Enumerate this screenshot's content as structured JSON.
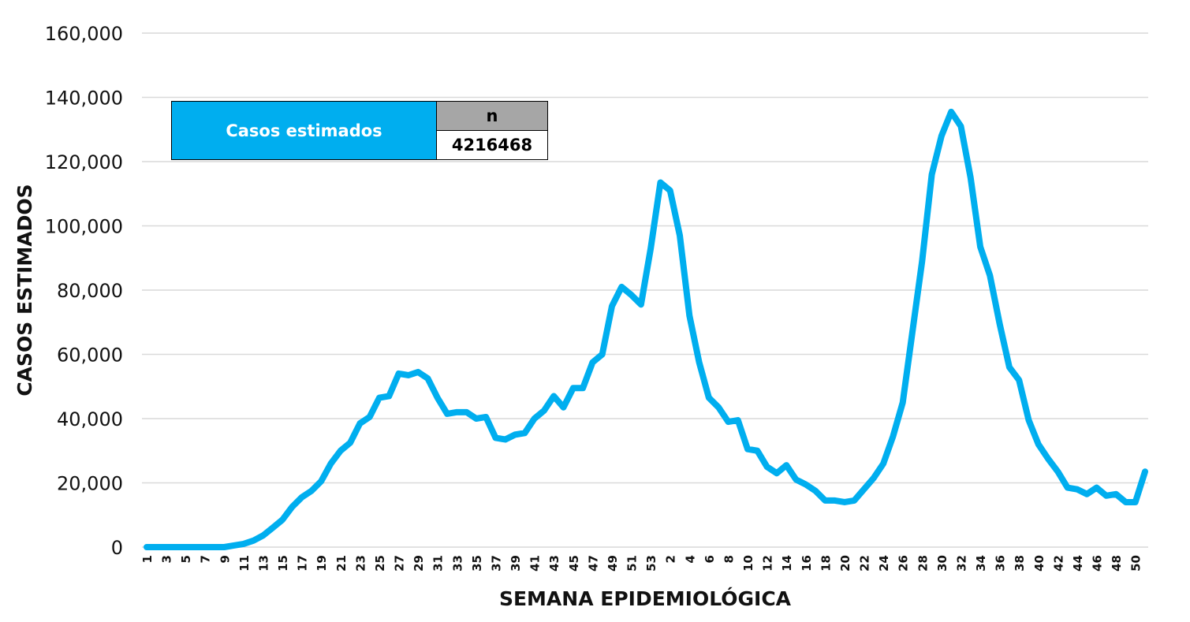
{
  "chart_data": {
    "type": "line",
    "xlabel": "SEMANA EPIDEMIOLÓGICA",
    "ylabel": "CASOS ESTIMADOS",
    "ylim": [
      0,
      160000
    ],
    "yticks": [
      "0",
      "20,000",
      "40,000",
      "60,000",
      "80,000",
      "100,000",
      "120,000",
      "140,000",
      "160,000"
    ],
    "grid": true,
    "color": "#00AEEF",
    "x": [
      "1",
      "2",
      "3",
      "4",
      "5",
      "6",
      "7",
      "8",
      "9",
      "10",
      "11",
      "12",
      "13",
      "14",
      "15",
      "16",
      "17",
      "18",
      "19",
      "20",
      "21",
      "22",
      "23",
      "24",
      "25",
      "26",
      "27",
      "28",
      "29",
      "30",
      "31",
      "32",
      "33",
      "34",
      "35",
      "36",
      "37",
      "38",
      "39",
      "40",
      "41",
      "42",
      "43",
      "44",
      "45",
      "46",
      "47",
      "48",
      "49",
      "50",
      "51",
      "52",
      "53",
      "1",
      "2",
      "3",
      "4",
      "5",
      "6",
      "7",
      "8",
      "9",
      "10",
      "11",
      "12",
      "13",
      "14",
      "15",
      "16",
      "17",
      "18",
      "19",
      "20",
      "21",
      "22",
      "23",
      "24",
      "25",
      "26",
      "27",
      "28",
      "29",
      "30",
      "31",
      "32",
      "33",
      "34",
      "35",
      "36",
      "37",
      "38",
      "39",
      "40",
      "41",
      "42",
      "43",
      "44",
      "45",
      "46",
      "47",
      "48",
      "49",
      "50",
      "51"
    ],
    "x_tick_labels": [
      "1",
      "3",
      "5",
      "7",
      "9",
      "11",
      "13",
      "15",
      "17",
      "19",
      "21",
      "23",
      "25",
      "27",
      "29",
      "31",
      "33",
      "35",
      "37",
      "39",
      "41",
      "43",
      "45",
      "47",
      "49",
      "51",
      "53",
      "2",
      "4",
      "6",
      "8",
      "10",
      "12",
      "14",
      "16",
      "18",
      "20",
      "22",
      "24",
      "26",
      "28",
      "30",
      "32",
      "34",
      "36",
      "38",
      "40",
      "42",
      "44",
      "46",
      "48",
      "50"
    ],
    "series": [
      {
        "values": [
          0,
          0,
          0,
          0,
          0,
          0,
          0,
          0,
          0,
          500,
          1000,
          2000,
          3600,
          6000,
          8500,
          12500,
          15500,
          17500,
          20500,
          26000,
          30000,
          32500,
          38500,
          40500,
          46500,
          47000,
          54000,
          53500,
          54500,
          52500,
          46500,
          41500,
          42000,
          42000,
          40000,
          40500,
          34000,
          33500,
          35000,
          35500,
          40000,
          42500,
          47000,
          43500,
          49500,
          49500,
          57500,
          60000,
          75000,
          81000,
          78500,
          75500,
          93000,
          113500,
          111000,
          97000,
          72000,
          57500,
          46500,
          43500,
          39000,
          39500,
          30500,
          30000,
          25000,
          23000,
          25500,
          21000,
          19500,
          17500,
          14500,
          14500,
          14000,
          14500,
          18000,
          21500,
          26000,
          34500,
          45000,
          67000,
          89000,
          116000,
          128000,
          135500,
          131000,
          115000,
          93500,
          84500,
          69500,
          56000,
          52000,
          39500,
          32000,
          27500,
          23500,
          18500,
          18000,
          16500,
          18500,
          16000,
          16500,
          14000,
          14000,
          23500
        ]
      }
    ]
  },
  "summary_box": {
    "label": "Casos estimados",
    "header": "n",
    "value": "4216468",
    "label_bg": "#00AEEF",
    "header_bg": "#A6A6A6"
  }
}
